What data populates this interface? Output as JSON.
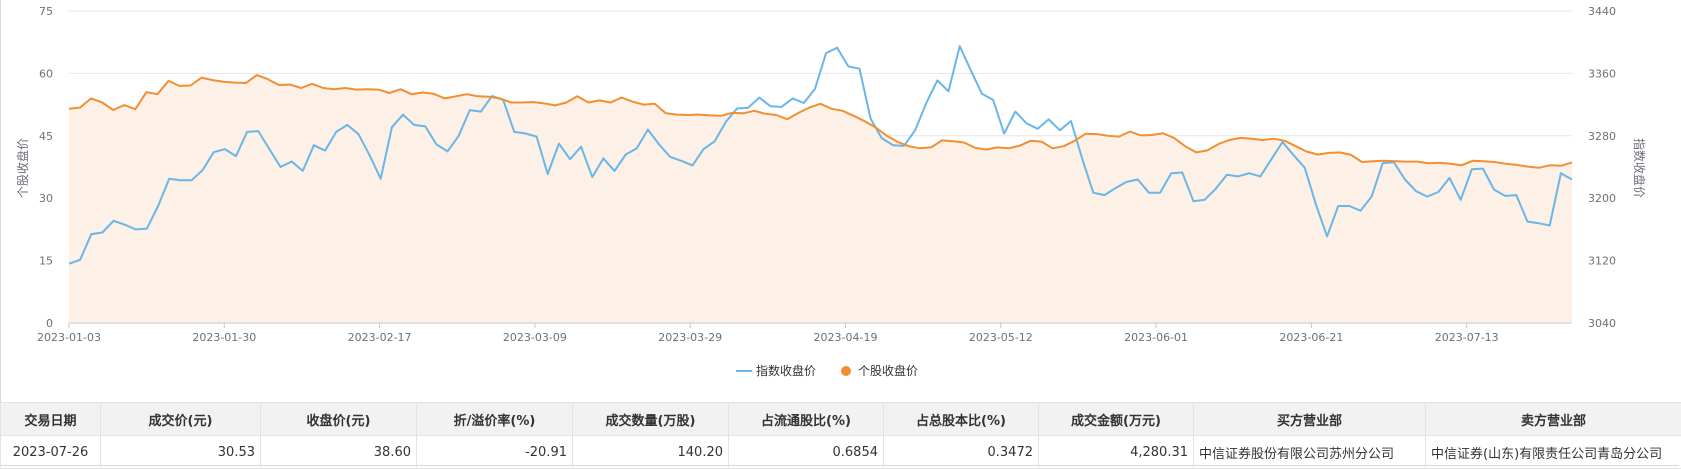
{
  "chart_data": {
    "type": "line",
    "left_axis": {
      "name": "个股收盘价",
      "min": 0,
      "max": 75,
      "ticks": [
        "0",
        "15",
        "30",
        "45",
        "60",
        "75"
      ]
    },
    "right_axis": {
      "name": "指数收盘价",
      "min": 3040,
      "max": 3440,
      "ticks": [
        "3040",
        "3120",
        "3200",
        "3280",
        "3360",
        "3440"
      ]
    },
    "x_tick_labels": [
      "2023-01-03",
      "2023-01-30",
      "2023-02-17",
      "2023-03-09",
      "2023-03-29",
      "2023-04-19",
      "2023-05-12",
      "2023-06-01",
      "2023-06-21",
      "2023-07-13"
    ],
    "series": [
      {
        "name": "指数收盘价",
        "axis": "right",
        "color": "#6ab6e8",
        "values": [
          3116,
          3121,
          3154,
          3156,
          3171,
          3166,
          3160,
          3161,
          3190,
          3225,
          3223,
          3223,
          3236,
          3259,
          3263,
          3254,
          3285,
          3286,
          3263,
          3240,
          3247,
          3235,
          3268,
          3261,
          3285,
          3294,
          3282,
          3255,
          3225,
          3291,
          3307,
          3294,
          3292,
          3269,
          3260,
          3280,
          3313,
          3311,
          3331,
          3326,
          3285,
          3283,
          3279,
          3231,
          3270,
          3250,
          3266,
          3227,
          3251,
          3235,
          3256,
          3264,
          3288,
          3269,
          3253,
          3248,
          3242,
          3263,
          3273,
          3298,
          3315,
          3316,
          3329,
          3318,
          3317,
          3328,
          3322,
          3340,
          3386,
          3393,
          3369,
          3366,
          3302,
          3277,
          3268,
          3267,
          3287,
          3322,
          3351,
          3337,
          3395,
          3364,
          3334,
          3326,
          3283,
          3311,
          3296,
          3289,
          3301,
          3287,
          3299,
          3251,
          3207,
          3204,
          3213,
          3221,
          3224,
          3207,
          3207,
          3232,
          3233,
          3196,
          3198,
          3212,
          3230,
          3228,
          3232,
          3228,
          3250,
          3272,
          3255,
          3239,
          3192,
          3151,
          3190,
          3190,
          3184,
          3202,
          3245,
          3246,
          3224,
          3209,
          3202,
          3208,
          3226,
          3198,
          3237,
          3238,
          3211,
          3203,
          3204,
          3170,
          3168,
          3165,
          3232,
          3224
        ]
      },
      {
        "name": "个股收盘价",
        "axis": "left",
        "color": "#f28f33",
        "values": [
          51.5,
          51.8,
          54.0,
          53.0,
          51.2,
          52.4,
          51.4,
          55.5,
          55.0,
          58.2,
          57.0,
          57.1,
          59.0,
          58.4,
          58.0,
          57.8,
          57.7,
          59.6,
          58.6,
          57.2,
          57.3,
          56.5,
          57.5,
          56.5,
          56.2,
          56.5,
          56.1,
          56.2,
          56.1,
          55.3,
          56.2,
          55.0,
          55.4,
          55.1,
          54.0,
          54.5,
          55.0,
          54.5,
          54.4,
          54.0,
          53.0,
          53.0,
          53.1,
          52.8,
          52.3,
          53.0,
          54.5,
          53.0,
          53.5,
          53.0,
          54.2,
          53.2,
          52.5,
          52.7,
          50.4,
          50.1,
          50.0,
          50.1,
          49.9,
          49.8,
          50.5,
          50.4,
          51.0,
          50.3,
          50.0,
          49.0,
          50.5,
          51.8,
          52.7,
          51.5,
          51.0,
          49.8,
          48.5,
          47.0,
          45.0,
          43.5,
          42.5,
          42.0,
          42.2,
          43.9,
          43.7,
          43.4,
          42.1,
          41.7,
          42.2,
          42.0,
          42.6,
          43.8,
          43.6,
          42.0,
          42.5,
          43.8,
          45.5,
          45.4,
          45.0,
          44.8,
          46.0,
          45.1,
          45.2,
          45.6,
          44.5,
          42.5,
          41.0,
          41.5,
          43.0,
          44.0,
          44.5,
          44.3,
          44.0,
          44.3,
          43.8,
          42.5,
          41.2,
          40.5,
          40.9,
          41.0,
          40.4,
          38.7,
          38.9,
          39.0,
          38.9,
          38.8,
          38.8,
          38.4,
          38.5,
          38.3,
          37.9,
          39.0,
          38.9,
          38.7,
          38.3,
          38.0,
          37.6,
          37.3,
          37.9,
          37.8,
          38.6
        ]
      }
    ],
    "grid": "horizontal",
    "legend_position": "bottom-center",
    "area_fill": "#fdf0e6"
  },
  "table": {
    "headers": [
      "交易日期",
      "成交价(元)",
      "收盘价(元)",
      "折/溢价率(%)",
      "成交数量(万股)",
      "占流通股比(%)",
      "占总股本比(%)",
      "成交金额(万元)",
      "买方营业部",
      "卖方营业部"
    ],
    "rows": [
      [
        "2023-07-26",
        "30.53",
        "38.60",
        "-20.91",
        "140.20",
        "0.6854",
        "0.3472",
        "4,280.31",
        "中信证券股份有限公司苏州分公司",
        "中信证券(山东)有限责任公司青岛分公司"
      ]
    ]
  }
}
